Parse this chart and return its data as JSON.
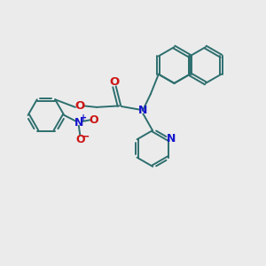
{
  "background_color": "#ebebeb",
  "bond_color": "#2d6e6e",
  "nitrogen_color": "#1414cc",
  "oxygen_color": "#cc1414",
  "line_width": 1.4,
  "figsize": [
    3.0,
    3.0
  ],
  "dpi": 100,
  "xlim": [
    0,
    10
  ],
  "ylim": [
    0,
    10
  ]
}
